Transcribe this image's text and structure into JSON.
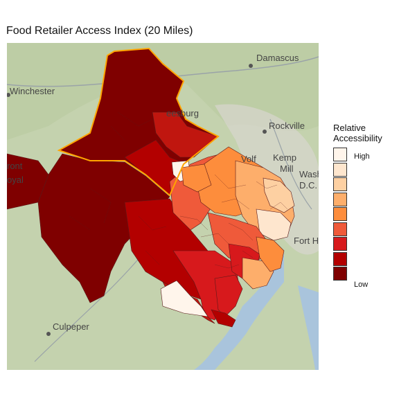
{
  "title": "Food Retailer Access Index (20 Miles)",
  "legend": {
    "title_line1": "Relative",
    "title_line2": "Accessibility",
    "high_label": "High",
    "low_label": "Low",
    "colors": [
      "#fff5eb",
      "#fee6ce",
      "#fdd0a2",
      "#fdae6b",
      "#fd8d3c",
      "#ef5a3a",
      "#d7191c",
      "#b30000",
      "#7f0000"
    ]
  },
  "map": {
    "basemap_labels": {
      "damascus": "Damascus",
      "winchester": "Winchester",
      "leesburg": "eesburg",
      "rockville": "Rockville",
      "kemp_mill_1": "Kemp",
      "kemp_mill_2": "Mill",
      "wolf": "Volf",
      "front_royal_1": "ront",
      "front_royal_2": "oyal",
      "washington_1": "Wash",
      "washington_2": "D.C.",
      "fort": "Fort H",
      "culpeper": "Culpeper"
    },
    "highlight_color": "#ffa500",
    "water_color": "#a9c4dc",
    "land_color": "#c7d4b0"
  }
}
